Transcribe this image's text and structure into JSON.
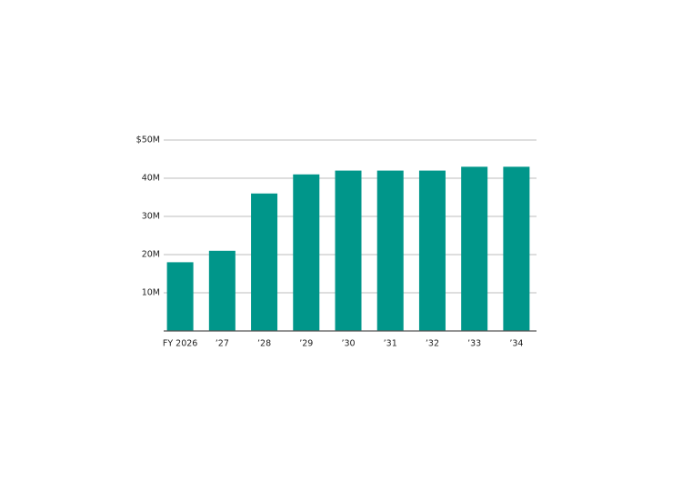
{
  "chart_data": {
    "type": "bar",
    "categories": [
      "FY 2026",
      "’27",
      "’28",
      "’29",
      "’30",
      "’31",
      "’32",
      "’33",
      "’34"
    ],
    "values": [
      18,
      21,
      36,
      41,
      42,
      42,
      42,
      43,
      43
    ],
    "color": "#00968a",
    "ylim": [
      0,
      50
    ],
    "yticks": [
      {
        "value": 10,
        "label": "10M"
      },
      {
        "value": 20,
        "label": "20M"
      },
      {
        "value": 30,
        "label": "30M"
      },
      {
        "value": 40,
        "label": "40M"
      },
      {
        "value": 50,
        "label": "$50M"
      }
    ],
    "grid": true
  }
}
